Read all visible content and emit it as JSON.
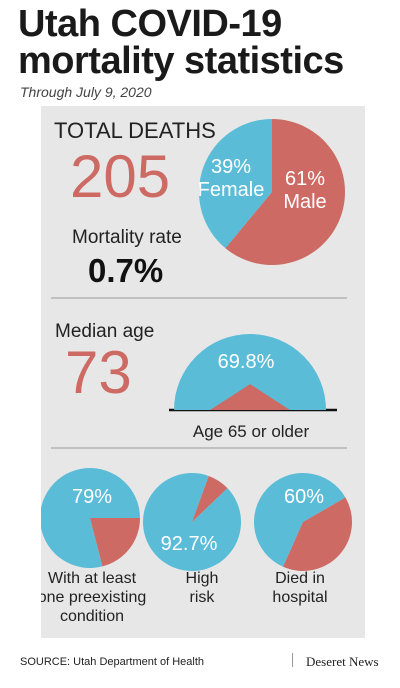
{
  "header": {
    "title": "Utah COVID-19 mortality statistics",
    "subtitle": "Through July 9, 2020"
  },
  "colors": {
    "blue": "#5bbcd8",
    "red": "#cd6a63",
    "panel": "#e7e7e7",
    "divider": "#9a9a9a"
  },
  "total_deaths": {
    "label": "TOTAL DEATHS",
    "value": "205"
  },
  "mortality_rate": {
    "label": "Mortality rate",
    "value": "0.7%"
  },
  "median_age": {
    "label": "Median age",
    "value": "73"
  },
  "footer": {
    "source": "SOURCE: Utah Department of Health",
    "brand": "Deseret News"
  },
  "chart_data": [
    {
      "type": "pie",
      "slices": [
        {
          "label": "Female",
          "value": 39,
          "display": "39%"
        },
        {
          "label": "Male",
          "value": 61,
          "display": "61%"
        }
      ]
    },
    {
      "type": "pie",
      "variant": "semicircle",
      "value": 69.8,
      "display": "69.8%",
      "caption": "Age 65 or older"
    },
    {
      "type": "pie",
      "value": 79,
      "display": "79%",
      "caption_lines": [
        "With at least",
        "one preexisting",
        "condition"
      ]
    },
    {
      "type": "pie",
      "value": 92.7,
      "display": "92.7%",
      "caption_lines": [
        "High",
        "risk"
      ]
    },
    {
      "type": "pie",
      "value": 60,
      "display": "60%",
      "caption_lines": [
        "Died in",
        "hospital"
      ]
    }
  ]
}
